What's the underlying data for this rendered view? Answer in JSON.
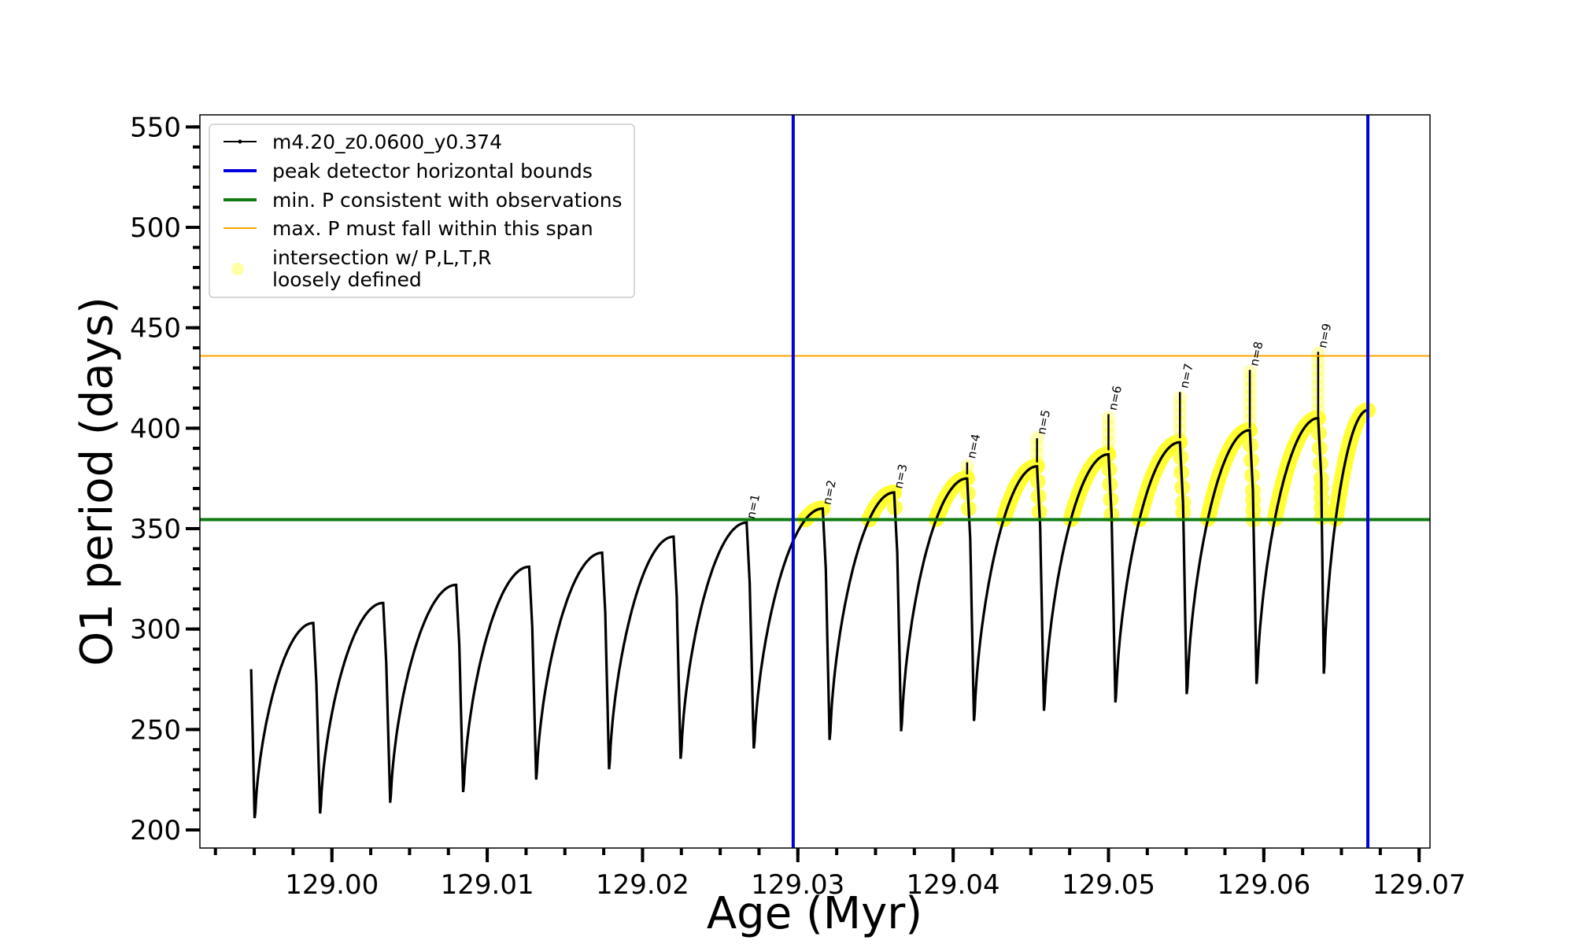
{
  "chart_data": {
    "type": "line",
    "title": "",
    "xlabel": "Age (Myr)",
    "ylabel": "O1 period (days)",
    "xlim": [
      128.9915,
      129.0707
    ],
    "ylim": [
      191,
      556
    ],
    "x_ticks": [
      {
        "value": 129.0,
        "label": "129.00"
      },
      {
        "value": 129.01,
        "label": "129.01"
      },
      {
        "value": 129.02,
        "label": "129.02"
      },
      {
        "value": 129.03,
        "label": "129.03"
      },
      {
        "value": 129.04,
        "label": "129.04"
      },
      {
        "value": 129.05,
        "label": "129.05"
      },
      {
        "value": 129.06,
        "label": "129.06"
      },
      {
        "value": 129.07,
        "label": "129.07"
      }
    ],
    "y_ticks": [
      {
        "value": 200,
        "label": "200"
      },
      {
        "value": 250,
        "label": "250"
      },
      {
        "value": 300,
        "label": "300"
      },
      {
        "value": 350,
        "label": "350"
      },
      {
        "value": 400,
        "label": "400"
      },
      {
        "value": 450,
        "label": "450"
      },
      {
        "value": 500,
        "label": "500"
      },
      {
        "value": 550,
        "label": "550"
      }
    ],
    "grid": false,
    "legend_position": "top-left",
    "legend": [
      {
        "label": "m4.20_z0.0600_y0.374",
        "kind": "line-marker",
        "color": "#000000"
      },
      {
        "label": "peak detector horizontal bounds",
        "kind": "line",
        "color": "#0000dd"
      },
      {
        "label": "min. P consistent with observations",
        "kind": "line",
        "color": "#107a10"
      },
      {
        "label": "max. P must fall within this span",
        "kind": "thin-line",
        "color": "#ffa500"
      },
      {
        "label": "intersection w/ P,L,T,R",
        "label2": "loosely defined",
        "kind": "dot",
        "color": "#ffff66"
      }
    ],
    "vertical_lines": [
      {
        "name": "peak detector horizontal bounds",
        "x": 129.0297,
        "color": "#0000dd"
      },
      {
        "name": "peak detector horizontal bounds",
        "x": 129.0667,
        "color": "#0000dd"
      }
    ],
    "horizontal_lines": [
      {
        "name": "min. P consistent with observations",
        "y": 354.5,
        "color": "#107a10"
      },
      {
        "name": "max. P must fall within this span",
        "y": 436,
        "color": "#ffa500"
      }
    ],
    "cycles": [
      {
        "start": 128.9948,
        "end": 128.9988,
        "trough": 200,
        "peak": 303,
        "end_top": 280
      },
      {
        "start": 128.999,
        "end": 129.0033,
        "trough": 203,
        "peak": 313
      },
      {
        "start": 129.0035,
        "end": 129.008,
        "trough": 208,
        "peak": 322
      },
      {
        "start": 129.0082,
        "end": 129.0127,
        "trough": 213,
        "peak": 331
      },
      {
        "start": 129.0129,
        "end": 129.0174,
        "trough": 219,
        "peak": 338
      },
      {
        "start": 129.0176,
        "end": 129.022,
        "trough": 224,
        "peak": 346
      },
      {
        "start": 129.0222,
        "end": 129.0267,
        "trough": 229,
        "peak": 353
      },
      {
        "start": 129.0269,
        "end": 129.0316,
        "trough": 234,
        "peak": 360
      },
      {
        "start": 129.0318,
        "end": 129.0362,
        "trough": 238,
        "peak": 368
      },
      {
        "start": 129.0364,
        "end": 129.0409,
        "trough": 242,
        "peak": 375
      },
      {
        "start": 129.0411,
        "end": 129.0454,
        "trough": 247,
        "peak": 381
      },
      {
        "start": 129.0456,
        "end": 129.05,
        "trough": 252,
        "peak": 387
      },
      {
        "start": 129.0502,
        "end": 129.0546,
        "trough": 256,
        "peak": 393
      },
      {
        "start": 129.0548,
        "end": 129.0591,
        "trough": 260,
        "peak": 399
      },
      {
        "start": 129.0593,
        "end": 129.0635,
        "trough": 265,
        "peak": 405
      },
      {
        "start": 129.0637,
        "end": 129.0667,
        "trough": 270,
        "peak": 409
      }
    ],
    "peaks": [
      {
        "label": "n=1",
        "x": 129.0267,
        "y": 353,
        "spike": 353
      },
      {
        "label": "n=2",
        "x": 129.0316,
        "y": 360,
        "spike": 360
      },
      {
        "label": "n=3",
        "x": 129.0362,
        "y": 368,
        "spike": 368
      },
      {
        "label": "n=4",
        "x": 129.0409,
        "y": 377,
        "spike": 383
      },
      {
        "label": "n=5",
        "x": 129.0454,
        "y": 383,
        "spike": 395
      },
      {
        "label": "n=6",
        "x": 129.05,
        "y": 389,
        "spike": 407
      },
      {
        "label": "n=7",
        "x": 129.0546,
        "y": 395,
        "spike": 418
      },
      {
        "label": "n=8",
        "x": 129.0591,
        "y": 400,
        "spike": 429
      },
      {
        "label": "n=9",
        "x": 129.0635,
        "y": 405,
        "spike": 438
      }
    ],
    "colors": {
      "model": "#000000",
      "bounds": "#0000dd",
      "min_p": "#107a10",
      "max_p": "#ffa500",
      "intersection": "#ffff33"
    }
  }
}
